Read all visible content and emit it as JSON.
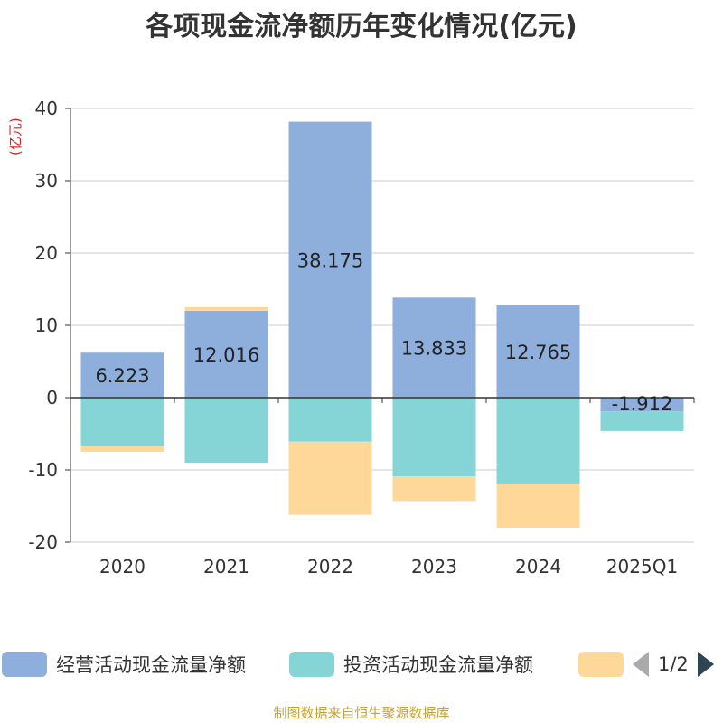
{
  "title": "各项现金流净额历年变化情况(亿元)",
  "unit_label": "(亿元)",
  "footer": "制图数据来自恒生聚源数据库",
  "legend": {
    "page": "1/2",
    "items": [
      {
        "label": "经营活动现金流量净额",
        "color": "#8eaedb"
      },
      {
        "label": "投资活动现金流量净额",
        "color": "#85d4d6"
      },
      {
        "label": "",
        "color": "#fdd899"
      }
    ]
  },
  "chart_data": {
    "type": "bar",
    "stacked": true,
    "categories": [
      "2020",
      "2021",
      "2022",
      "2023",
      "2024",
      "2025Q1"
    ],
    "ylim": [
      -20,
      40
    ],
    "yticks": [
      -20,
      -10,
      0,
      10,
      20,
      30,
      40
    ],
    "ylabel": "(亿元)",
    "grid": true,
    "legend_position": "bottom",
    "series": [
      {
        "name": "经营活动现金流量净额",
        "color": "#8eaedb",
        "values": [
          6.223,
          12.016,
          38.175,
          13.833,
          12.765,
          -1.912
        ],
        "labels": [
          "6.223",
          "12.016",
          "38.175",
          "13.833",
          "12.765",
          "-1.912"
        ]
      },
      {
        "name": "投资活动现金流量净额",
        "color": "#85d4d6",
        "values": [
          -6.7,
          -9.0,
          -6.1,
          -10.9,
          -11.9,
          -2.7
        ]
      },
      {
        "color": "#fdd899",
        "values": [
          -0.8,
          0.5,
          -10.1,
          -3.4,
          -6.1,
          0
        ]
      }
    ]
  }
}
